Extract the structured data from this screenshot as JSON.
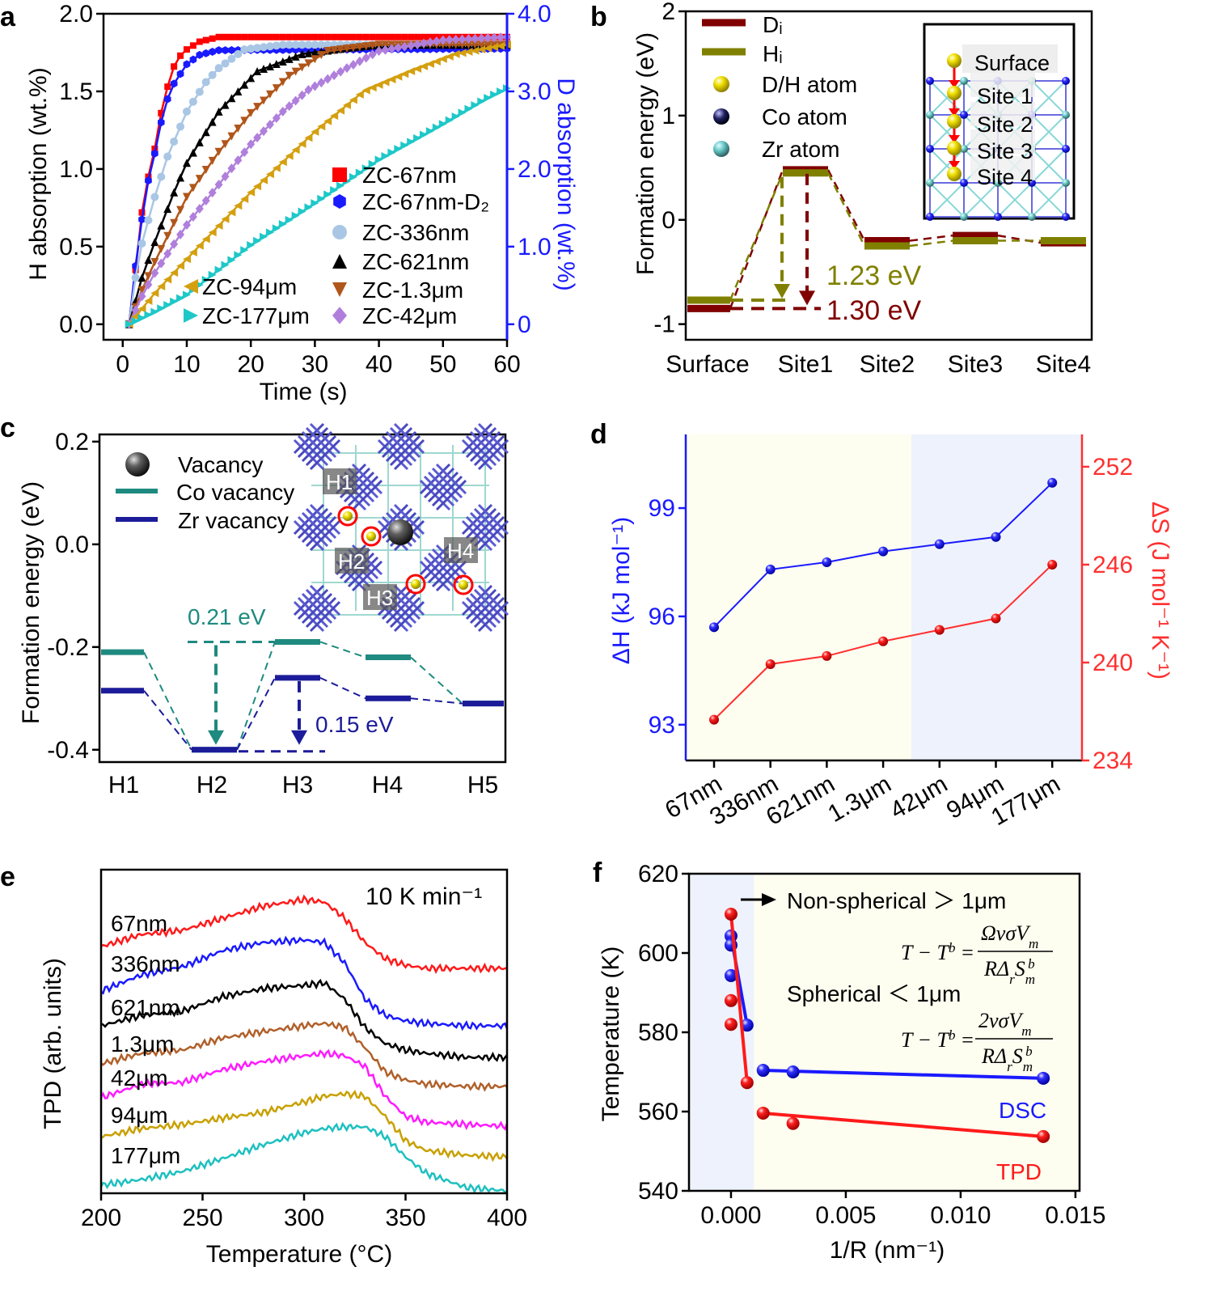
{
  "panel_labels": [
    "a",
    "b",
    "c",
    "d",
    "e",
    "f"
  ],
  "chart_data": [
    {
      "type": "line",
      "xlabel": "Time (s)",
      "ylabel": "H absorption (wt.%)",
      "y2label": "D absorption (wt.%)",
      "xlim": [
        -3,
        60
      ],
      "ylim": [
        -0.1,
        2.0
      ],
      "y2lim": [
        -0.2,
        4.0
      ],
      "xticks": [
        0,
        10,
        20,
        30,
        40,
        50,
        60
      ],
      "xticklabels": [
        "0",
        "10",
        "20",
        "30",
        "40",
        "50",
        "60"
      ],
      "yticks": [
        0,
        0.5,
        1.0,
        1.5,
        2.0
      ],
      "yticklabels": [
        "0.0",
        "0.5",
        "1.0",
        "1.5",
        "2.0"
      ],
      "y2ticks": [
        0,
        1,
        2,
        3,
        4
      ],
      "y2ticklabels": [
        "0",
        "1.0",
        "2.0",
        "3.0",
        "4.0"
      ],
      "y2color": "#1a1aff",
      "series": [
        {
          "name": "ZC-67nm",
          "color": "#ff0000",
          "marker": "square",
          "axis": "left",
          "points": [
            [
              1,
              0
            ],
            [
              2,
              0.35
            ],
            [
              3,
              0.72
            ],
            [
              4,
              0.95
            ],
            [
              5,
              1.13
            ],
            [
              6,
              1.36
            ],
            [
              7,
              1.53
            ],
            [
              8,
              1.66
            ],
            [
              9,
              1.73
            ],
            [
              10,
              1.77
            ],
            [
              12,
              1.82
            ],
            [
              15,
              1.85
            ],
            [
              60,
              1.85
            ]
          ]
        },
        {
          "name": "ZC-67nm-D₂",
          "color": "#1a1aff",
          "marker": "hexagon",
          "axis": "right",
          "points": [
            [
              1,
              0
            ],
            [
              2,
              0.75
            ],
            [
              3,
              1.35
            ],
            [
              4,
              1.85
            ],
            [
              5,
              2.2
            ],
            [
              6,
              2.6
            ],
            [
              7,
              2.9
            ],
            [
              8,
              3.1
            ],
            [
              10,
              3.35
            ],
            [
              12,
              3.47
            ],
            [
              15,
              3.53
            ],
            [
              60,
              3.55
            ]
          ]
        },
        {
          "name": "ZC-336nm",
          "color": "#a9c6e4",
          "marker": "circle",
          "axis": "left",
          "points": [
            [
              1,
              0
            ],
            [
              2,
              0.3
            ],
            [
              3,
              0.52
            ],
            [
              5,
              0.82
            ],
            [
              7,
              1.08
            ],
            [
              10,
              1.37
            ],
            [
              13,
              1.56
            ],
            [
              15,
              1.65
            ],
            [
              19,
              1.77
            ],
            [
              25,
              1.8
            ],
            [
              60,
              1.8
            ]
          ]
        },
        {
          "name": "ZC-621nm",
          "color": "#000000",
          "marker": "triangle-up",
          "axis": "left",
          "points": [
            [
              1,
              0
            ],
            [
              3,
              0.3
            ],
            [
              5,
              0.53
            ],
            [
              8,
              0.85
            ],
            [
              10,
              1.04
            ],
            [
              15,
              1.37
            ],
            [
              21,
              1.63
            ],
            [
              28,
              1.74
            ],
            [
              35,
              1.78
            ],
            [
              40,
              1.8
            ],
            [
              60,
              1.8
            ]
          ]
        },
        {
          "name": "ZC-1.3μm",
          "color": "#b0561a",
          "marker": "triangle-down",
          "axis": "left",
          "points": [
            [
              1,
              0
            ],
            [
              3,
              0.22
            ],
            [
              5,
              0.4
            ],
            [
              10,
              0.82
            ],
            [
              15,
              1.11
            ],
            [
              20,
              1.36
            ],
            [
              26,
              1.6
            ],
            [
              32,
              1.76
            ],
            [
              40,
              1.8
            ],
            [
              60,
              1.8
            ]
          ]
        },
        {
          "name": "ZC-42μm",
          "color": "#b07fdc",
          "marker": "diamond",
          "axis": "left",
          "points": [
            [
              1,
              0
            ],
            [
              3,
              0.18
            ],
            [
              5,
              0.33
            ],
            [
              10,
              0.64
            ],
            [
              15,
              0.9
            ],
            [
              20,
              1.16
            ],
            [
              25,
              1.37
            ],
            [
              29,
              1.51
            ],
            [
              35,
              1.65
            ],
            [
              40,
              1.76
            ],
            [
              50,
              1.83
            ],
            [
              60,
              1.85
            ]
          ]
        },
        {
          "name": "ZC-94μm",
          "color": "#d4a010",
          "marker": "triangle-left",
          "axis": "left",
          "points": [
            [
              1,
              0
            ],
            [
              3,
              0.1
            ],
            [
              5,
              0.2
            ],
            [
              10,
              0.42
            ],
            [
              20,
              0.85
            ],
            [
              30,
              1.24
            ],
            [
              37.6,
              1.5
            ],
            [
              45,
              1.63
            ],
            [
              52,
              1.74
            ],
            [
              60,
              1.8
            ]
          ]
        },
        {
          "name": "ZC-177μm",
          "color": "#1ec8c8",
          "marker": "triangle-right",
          "axis": "left",
          "points": [
            [
              1,
              0
            ],
            [
              5,
              0.08
            ],
            [
              10,
              0.19
            ],
            [
              20,
              0.51
            ],
            [
              30,
              0.78
            ],
            [
              40,
              1.06
            ],
            [
              50,
              1.29
            ],
            [
              56.6,
              1.45
            ],
            [
              60,
              1.52
            ]
          ]
        }
      ]
    },
    {
      "type": "line",
      "ylabel": "Formation energy (eV)",
      "categories": [
        "Surface",
        "Site1",
        "Site2",
        "Site3",
        "Site4"
      ],
      "ylim": [
        -1.15,
        2
      ],
      "yticks": [
        -1,
        0,
        1,
        2
      ],
      "yticklabels": [
        "-1",
        "0",
        "1",
        "2"
      ],
      "series": [
        {
          "name": "Dᵢ",
          "color": "#800000",
          "values": [
            -0.85,
            0.48,
            -0.2,
            -0.15,
            -0.22
          ]
        },
        {
          "name": "Hᵢ",
          "color": "#808000",
          "values": [
            -0.77,
            0.45,
            -0.25,
            -0.2,
            -0.2
          ]
        }
      ],
      "legend_atoms": [
        {
          "label": "D/H atom",
          "icon": "yellow-sphere"
        },
        {
          "label": "Co atom",
          "icon": "navy-sphere"
        },
        {
          "label": "Zr atom",
          "icon": "cyan-sphere"
        }
      ],
      "annotations": [
        {
          "text": "1.23 eV",
          "color": "#808000"
        },
        {
          "text": "1.30 eV",
          "color": "#800000"
        }
      ],
      "inset_labels": [
        "Surface",
        "Site 1",
        "Site 2",
        "Site 3",
        "Site 4"
      ]
    },
    {
      "type": "line",
      "ylabel": "Formation energy (eV)",
      "categories": [
        "H1",
        "H2",
        "H3",
        "H4",
        "H5"
      ],
      "ylim": [
        -0.424,
        0.214
      ],
      "yticks": [
        -0.4,
        -0.2,
        0.0,
        0.2
      ],
      "yticklabels": [
        "-0.4",
        "-0.2",
        "0.0",
        "0.2"
      ],
      "legend_vacancy": "Vacancy",
      "series": [
        {
          "name": "Co vacancy",
          "color": "#1f8a80",
          "values": [
            -0.21,
            -0.4,
            -0.19,
            -0.22,
            -0.31
          ]
        },
        {
          "name": "Zr vacancy",
          "color": "#1c1c9a",
          "values": [
            -0.285,
            -0.4,
            -0.26,
            -0.3,
            -0.31
          ]
        }
      ],
      "annotations": [
        {
          "text": "0.21 eV",
          "color": "#1f8a80"
        },
        {
          "text": "0.15 eV",
          "color": "#1c1c9a"
        }
      ],
      "inset_labels": [
        "H1",
        "H2",
        "H3",
        "H4"
      ]
    },
    {
      "type": "line",
      "categories": [
        "67nm",
        "336nm",
        "621nm",
        "1.3μm",
        "42μm",
        "94μm",
        "177μm"
      ],
      "ylabel": "ΔH (kJ mol⁻¹)",
      "y2label": "ΔS (J mol⁻¹ K⁻¹)",
      "ylim": [
        92.01,
        101.04
      ],
      "y2lim": [
        234,
        253.98
      ],
      "yticks": [
        93,
        96,
        99
      ],
      "yticklabels": [
        "93",
        "96",
        "99"
      ],
      "y2ticks": [
        234,
        240,
        246,
        252
      ],
      "y2ticklabels": [
        "234",
        "240",
        "246",
        "252"
      ],
      "series": [
        {
          "name": "ΔH",
          "axis": "left",
          "color": "#1a1aff",
          "values": [
            95.7,
            97.3,
            97.5,
            97.8,
            98.0,
            98.2,
            99.7
          ]
        },
        {
          "name": "ΔS",
          "axis": "right",
          "color": "#ff3030",
          "values": [
            236.5,
            239.9,
            240.4,
            241.3,
            242.0,
            242.7,
            246.0
          ]
        }
      ],
      "background_regions": [
        {
          "from": "67nm",
          "to": "1.3μm",
          "color": "#fdfdf0"
        },
        {
          "from": "42μm",
          "to": "177μm",
          "color": "#eef2fc"
        }
      ]
    },
    {
      "type": "line",
      "xlabel": "Temperature (°C)",
      "ylabel": "TPD (arb. units)",
      "annotation": "10 K min⁻¹",
      "xlim": [
        200,
        400
      ],
      "ylim": [
        0.5,
        40.5
      ],
      "xticks": [
        200,
        250,
        300,
        350,
        400
      ],
      "xticklabels": [
        "200",
        "250",
        "300",
        "350",
        "400"
      ],
      "x": [
        200,
        220,
        240,
        260,
        280,
        300,
        310,
        320,
        330,
        340,
        350,
        360,
        380,
        400
      ],
      "series": [
        {
          "name": "67nm",
          "color": "#ff1a1a",
          "values": [
            31.0,
            32.5,
            33.0,
            34.5,
            36.0,
            36.8,
            36.5,
            34.5,
            31.5,
            29.5,
            28.7,
            28.3,
            28.3,
            28.3
          ]
        },
        {
          "name": "336nm",
          "color": "#1a1aff",
          "values": [
            25.5,
            27.5,
            28.5,
            30.5,
            31.5,
            31.8,
            31.5,
            29.0,
            24.5,
            22.5,
            21.8,
            21.5,
            21.2,
            21.2
          ]
        },
        {
          "name": "621nm",
          "color": "#000000",
          "values": [
            21.2,
            22.5,
            23.0,
            24.8,
            25.8,
            26.2,
            26.5,
            24.5,
            21.0,
            19.0,
            18.2,
            17.8,
            17.3,
            17.3
          ]
        },
        {
          "name": "1.3μm",
          "color": "#b0602a",
          "values": [
            16.5,
            17.8,
            18.2,
            19.7,
            20.5,
            21.2,
            21.5,
            21.0,
            18.5,
            15.5,
            14.5,
            14.0,
            13.7,
            13.7
          ]
        },
        {
          "name": "42μm",
          "color": "#ff1aff",
          "values": [
            12.3,
            14.0,
            14.2,
            15.8,
            16.8,
            17.5,
            17.8,
            17.5,
            16.2,
            12.5,
            10.0,
            9.3,
            9.0,
            8.8
          ]
        },
        {
          "name": "94μm",
          "color": "#c8a000",
          "values": [
            7.5,
            8.5,
            9.0,
            9.8,
            10.5,
            11.8,
            12.5,
            12.8,
            12.5,
            10.0,
            7.0,
            5.8,
            5.2,
            5.0
          ]
        },
        {
          "name": "177μm",
          "color": "#1ec0c0",
          "values": [
            1.5,
            2.2,
            3.2,
            4.8,
            6.5,
            8.0,
            8.5,
            8.7,
            8.7,
            7.5,
            5.0,
            3.0,
            1.2,
            0.8
          ]
        }
      ]
    },
    {
      "type": "scatter",
      "xlabel": "1/R (nm⁻¹)",
      "ylabel": "Temperature (K)",
      "xlim": [
        -0.00183,
        0.01518
      ],
      "ylim": [
        540,
        620
      ],
      "xticks": [
        0,
        0.005,
        0.01,
        0.015
      ],
      "xticklabels": [
        "0.000",
        "0.005",
        "0.010",
        "0.015"
      ],
      "yticks": [
        540,
        560,
        580,
        600,
        620
      ],
      "yticklabels": [
        "540",
        "560",
        "580",
        "600",
        "620"
      ],
      "series": [
        {
          "name": "DSC",
          "color": "#1a1aff",
          "x": [
            0,
            0,
            0,
            0.0007,
            0.0014,
            0.0027,
            0.0136
          ],
          "y": [
            604.3,
            602.0,
            594.3,
            581.8,
            570.4,
            570.0,
            568.4
          ]
        },
        {
          "name": "TPD",
          "color": "#ff1a1a",
          "x": [
            0,
            0,
            0,
            0.0007,
            0.0014,
            0.0027,
            0.0136
          ],
          "y": [
            609.8,
            588.0,
            582.0,
            567.3,
            559.6,
            557.0,
            553.7
          ]
        }
      ],
      "regions": [
        {
          "to_x": 0.001,
          "color": "#eef2fc"
        },
        {
          "from_x": 0.001,
          "color": "#fdfdf0"
        }
      ],
      "annotations": {
        "nonspherical": "Non-spherical ＞ 1μm",
        "spherical": "Spherical ＜ 1μm",
        "eq1": {
          "lhs": "T − T",
          "lhs_sup": "b",
          "eq": "=",
          "num": "ΩνσV",
          "num_sub": "m",
          "den": "RΔ",
          "den_sub": "r",
          "den_s": "S",
          "den_sub2": "m",
          "den_sup": "b"
        },
        "eq2": {
          "lhs": "T − T",
          "lhs_sup": "b",
          "eq": "=",
          "num": "2νσV",
          "num_sub": "m",
          "den": "RΔ",
          "den_sub": "r",
          "den_s": "S",
          "den_sub2": "m",
          "den_sup": "b"
        }
      }
    }
  ]
}
